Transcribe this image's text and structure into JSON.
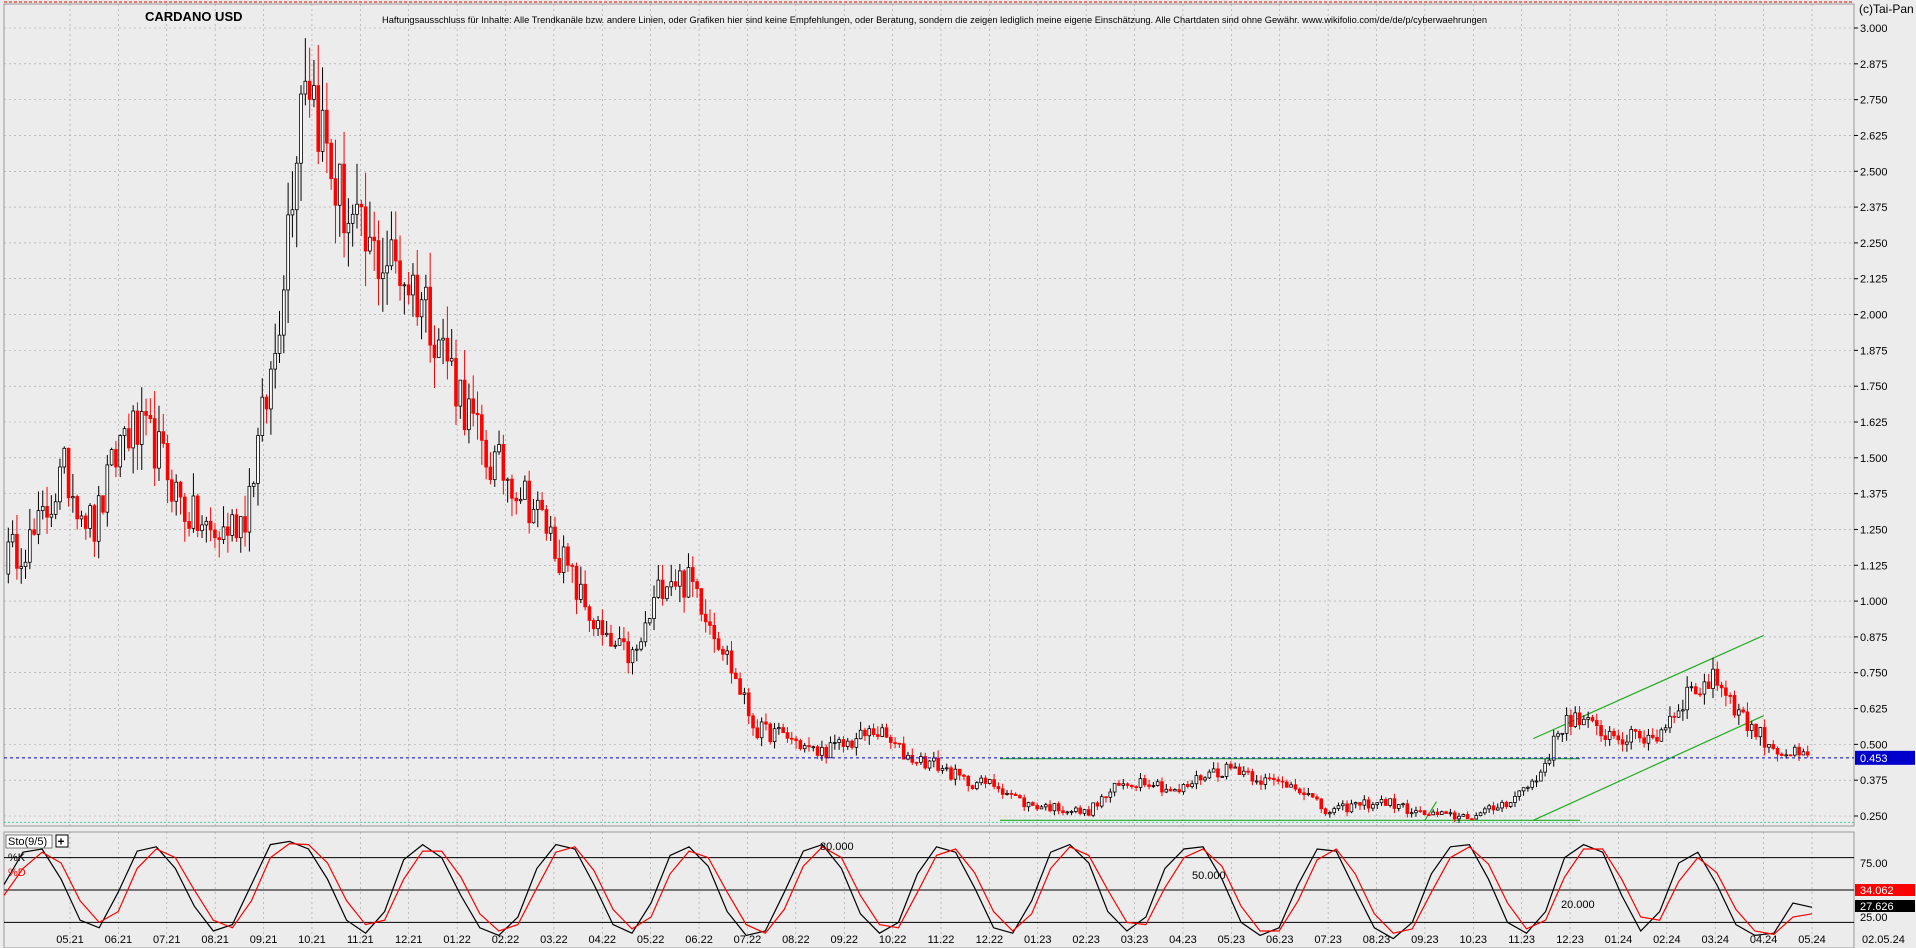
{
  "header": {
    "title": "CARDANO USD",
    "disclaimer": "Haftungsausschluss für Inhalte: Alle Trendkanäle bzw. andere Linien, oder Grafiken hier sind keine Empfehlungen, oder Beratung, sondern die zeigen lediglich meine eigene Einschätzung. Alle Chartdaten sind ohne Gewähr.  www.wikifolio.com/de/de/p/cyberwaehrungen",
    "copyright": "(c)Tai-Pan"
  },
  "colors": {
    "background": "#ececec",
    "up_candle": "#000000",
    "down_candle": "#ff0000",
    "price_line": "#0000cc",
    "trend_line": "#22aa22",
    "stoch_k": "#000000",
    "stoch_d": "#ff0000",
    "grid": "#a0a0a0"
  },
  "chart_data": [
    {
      "type": "candlestick",
      "title": "CARDANO USD",
      "y_ticks": [
        "3.000",
        "2.875",
        "2.750",
        "2.625",
        "2.500",
        "2.375",
        "2.250",
        "2.125",
        "2.000",
        "1.875",
        "1.750",
        "1.625",
        "1.500",
        "1.375",
        "1.250",
        "1.125",
        "1.000",
        "0.875",
        "0.750",
        "0.625",
        "0.500",
        "0.375",
        "0.250"
      ],
      "ylim": [
        0.2,
        3.06
      ],
      "x_ticks": [
        "05.21",
        "06.21",
        "07.21",
        "08.21",
        "09.21",
        "10.21",
        "11.21",
        "12.21",
        "01.22",
        "02.22",
        "03.22",
        "04.22",
        "05.22",
        "06.22",
        "07.22",
        "08.22",
        "09.22",
        "10.22",
        "11.22",
        "12.22",
        "01.23",
        "02.23",
        "03.23",
        "04.23",
        "05.23",
        "06.23",
        "07.23",
        "08.23",
        "09.23",
        "10.23",
        "11.23",
        "12.23",
        "01.24",
        "02.24",
        "03.24",
        "04.24",
        "05.24"
      ],
      "x_end_label": "02.05.24",
      "current_price_label": "0.453",
      "current_price": 0.453,
      "series": [
        {
          "name": "",
          "x": [
            "04.21",
            "05.21",
            "05.21",
            "06.21",
            "06.21",
            "07.21",
            "07.21",
            "08.21",
            "08.21",
            "09.21",
            "09.21",
            "10.21",
            "10.21",
            "11.21",
            "11.21",
            "12.21",
            "12.21",
            "01.22",
            "01.22",
            "02.22",
            "03.22",
            "03.22",
            "04.22",
            "04.22",
            "05.22",
            "05.22",
            "06.22",
            "07.22",
            "08.22",
            "08.22",
            "09.22",
            "10.22",
            "11.22",
            "11.22",
            "12.22",
            "12.22",
            "01.23",
            "02.23",
            "02.23",
            "03.23",
            "04.23",
            "04.23",
            "05.23",
            "06.23",
            "06.23",
            "07.23",
            "08.23",
            "09.23",
            "10.23",
            "10.23",
            "11.23",
            "12.23",
            "12.23",
            "01.24",
            "02.24",
            "02.24",
            "03.24",
            "03.24",
            "04.24",
            "04.24",
            "05.24"
          ],
          "values": [
            1.15,
            1.22,
            1.45,
            1.25,
            1.6,
            1.55,
            1.32,
            1.22,
            1.3,
            1.85,
            2.92,
            2.45,
            2.22,
            2.18,
            2.05,
            1.78,
            1.5,
            1.42,
            1.27,
            1.05,
            0.85,
            0.8,
            1.1,
            1.05,
            0.82,
            0.55,
            0.53,
            0.47,
            0.5,
            0.55,
            0.46,
            0.43,
            0.37,
            0.36,
            0.29,
            0.28,
            0.26,
            0.35,
            0.38,
            0.33,
            0.4,
            0.42,
            0.37,
            0.36,
            0.26,
            0.29,
            0.3,
            0.26,
            0.25,
            0.25,
            0.3,
            0.38,
            0.6,
            0.55,
            0.52,
            0.53,
            0.68,
            0.73,
            0.57,
            0.48,
            0.45
          ]
        }
      ],
      "annotations": {
        "horizontal_level": 0.45,
        "support_level": 0.235,
        "channel_upper": {
          "x": [
            "10.23",
            "04.24"
          ],
          "values": [
            0.52,
            0.88
          ]
        },
        "channel_lower": {
          "x": [
            "10.23",
            "04.24"
          ],
          "values": [
            0.235,
            0.6
          ]
        },
        "falling_line": {
          "x": [
            "08.23",
            "09.23"
          ],
          "values": [
            0.3,
            0.235
          ]
        }
      }
    },
    {
      "type": "line",
      "title": "Sto(9/5)",
      "legend": [
        "%K",
        "%D"
      ],
      "y_ticks": [
        "75.00",
        "50.00",
        "25.00"
      ],
      "ylim": [
        0,
        100
      ],
      "levels": {
        "upper": 80,
        "middle": 50,
        "lower": 20
      },
      "level_labels": {
        "upper": "80.000",
        "middle": "50.000",
        "lower": "20.000"
      },
      "value_labels": {
        "k": "34.062",
        "d": "27.626"
      },
      "series": [
        {
          "name": "%K",
          "values": [
            55,
            85,
            88,
            60,
            22,
            15,
            48,
            86,
            90,
            70,
            35,
            12,
            18,
            55,
            92,
            95,
            88,
            60,
            22,
            10,
            30,
            78,
            92,
            80,
            45,
            15,
            8,
            25,
            70,
            92,
            88,
            55,
            18,
            10,
            38,
            82,
            90,
            72,
            30,
            8,
            12,
            48,
            86,
            92,
            70,
            28,
            10,
            20,
            65,
            90,
            85,
            52,
            15,
            10,
            40,
            85,
            92,
            75,
            30,
            12,
            25,
            70,
            88,
            90,
            60,
            20,
            8,
            15,
            55,
            88,
            86,
            50,
            15,
            5,
            20,
            65,
            90,
            92,
            60,
            20,
            10,
            30,
            80,
            92,
            85,
            45,
            12,
            30,
            75,
            85,
            55,
            18,
            8,
            10,
            38,
            34
          ]
        },
        {
          "name": "%D",
          "values": [
            45,
            70,
            85,
            75,
            40,
            20,
            30,
            70,
            88,
            80,
            50,
            22,
            15,
            40,
            80,
            93,
            92,
            75,
            40,
            18,
            22,
            60,
            86,
            86,
            62,
            28,
            12,
            18,
            52,
            85,
            90,
            68,
            32,
            14,
            25,
            65,
            86,
            80,
            48,
            18,
            10,
            32,
            72,
            90,
            80,
            45,
            18,
            15,
            48,
            82,
            88,
            66,
            30,
            12,
            28,
            70,
            90,
            82,
            50,
            20,
            18,
            52,
            80,
            88,
            72,
            35,
            12,
            12,
            40,
            78,
            88,
            65,
            28,
            10,
            14,
            48,
            80,
            90,
            74,
            38,
            14,
            22,
            62,
            88,
            88,
            60,
            25,
            22,
            58,
            80,
            66,
            32,
            12,
            9,
            25,
            28
          ]
        }
      ]
    }
  ]
}
